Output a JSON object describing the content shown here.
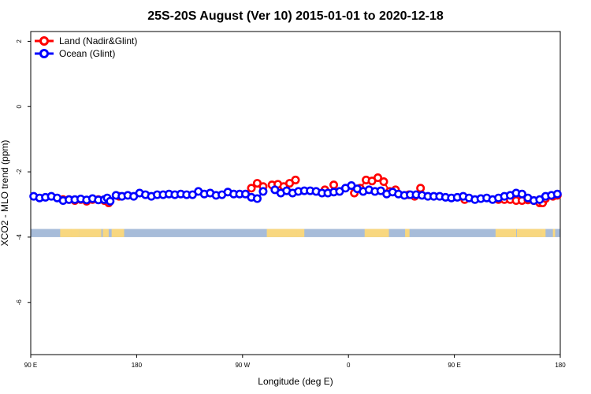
{
  "chart_data": {
    "type": "line",
    "title": "25S-20S August (Ver 10)   2015-01-01 to 2020-12-18",
    "xlabel": "Longitude (deg E)",
    "ylabel": "XCO2 - MLO trend (ppm)",
    "xlim": [
      90,
      450
    ],
    "ylim": [
      -7.6,
      2.3
    ],
    "x_ticks": [
      90,
      162,
      234,
      306,
      378,
      450
    ],
    "x_tick_labels": [
      "90 E",
      "180",
      "90 W",
      "0",
      "90 E",
      "180"
    ],
    "y_ticks": [
      2,
      0,
      -2,
      -4,
      -6
    ],
    "y_tick_labels": [
      "2",
      "0",
      "-2",
      "-4",
      "-6"
    ],
    "grid": false,
    "legend_position": "top-left",
    "map_strip": {
      "y_range": [
        -4.0,
        -3.75
      ],
      "ocean_color": "#a7bcd9",
      "land_color": "#f8d77f",
      "land_segments": [
        [
          110.0,
          120.0
        ],
        [
          117.5,
          123.0
        ],
        [
          123.0,
          138.0
        ],
        [
          139.0,
          143.0
        ],
        [
          145.0,
          153.5
        ],
        [
          250.5,
          251.8
        ],
        [
          251.0,
          268.0
        ],
        [
          267.5,
          271.5
        ],
        [
          271.0,
          276.0
        ],
        [
          317.0,
          333.5
        ],
        [
          344.5,
          347.5
        ],
        [
          406.0,
          420.0
        ],
        [
          420.5,
          437.0
        ],
        [
          437.0,
          440.0
        ],
        [
          445.0,
          446.5
        ]
      ]
    },
    "series": [
      {
        "name": "Land (Nadir&Glint)",
        "color": "#ff0000",
        "x": [
          112,
          116,
          120,
          124,
          128,
          132,
          136,
          140,
          143,
          150,
          240,
          244,
          248,
          254,
          258,
          262,
          266,
          270,
          290,
          296,
          310,
          314,
          318,
          322,
          326,
          330,
          334,
          338,
          347,
          351,
          355,
          385,
          408,
          412,
          416,
          420,
          424,
          428,
          432,
          436,
          438,
          440,
          445,
          448
        ],
        "y": [
          -2.85,
          -2.85,
          -2.88,
          -2.85,
          -2.9,
          -2.85,
          -2.85,
          -2.88,
          -2.95,
          -2.75,
          -2.5,
          -2.35,
          -2.45,
          -2.4,
          -2.38,
          -2.45,
          -2.35,
          -2.25,
          -2.55,
          -2.4,
          -2.65,
          -2.5,
          -2.25,
          -2.28,
          -2.18,
          -2.3,
          -2.6,
          -2.55,
          -2.7,
          -2.75,
          -2.5,
          -2.85,
          -2.85,
          -2.85,
          -2.85,
          -2.88,
          -2.88,
          -2.86,
          -2.88,
          -2.95,
          -2.95,
          -2.82,
          -2.75,
          -2.72
        ]
      },
      {
        "name": "Ocean (Glint)",
        "color": "#0000ff",
        "x": [
          92,
          96,
          100,
          104,
          108,
          112,
          116,
          120,
          124,
          128,
          132,
          136,
          140,
          142,
          144,
          148,
          152,
          156,
          160,
          164,
          168,
          172,
          176,
          180,
          184,
          188,
          192,
          196,
          200,
          204,
          208,
          212,
          216,
          220,
          224,
          228,
          232,
          236,
          240,
          244,
          248,
          256,
          260,
          264,
          268,
          272,
          276,
          280,
          284,
          288,
          292,
          296,
          300,
          304,
          308,
          312,
          316,
          320,
          324,
          328,
          332,
          336,
          340,
          344,
          348,
          352,
          356,
          360,
          364,
          368,
          372,
          376,
          380,
          384,
          388,
          392,
          396,
          400,
          404,
          408,
          412,
          416,
          420,
          424,
          428,
          432,
          436,
          440,
          444,
          448
        ],
        "y": [
          -2.75,
          -2.8,
          -2.78,
          -2.75,
          -2.8,
          -2.88,
          -2.85,
          -2.85,
          -2.83,
          -2.86,
          -2.82,
          -2.86,
          -2.85,
          -2.8,
          -2.9,
          -2.72,
          -2.75,
          -2.72,
          -2.75,
          -2.65,
          -2.7,
          -2.75,
          -2.7,
          -2.7,
          -2.68,
          -2.7,
          -2.68,
          -2.7,
          -2.7,
          -2.6,
          -2.68,
          -2.65,
          -2.72,
          -2.7,
          -2.62,
          -2.68,
          -2.68,
          -2.68,
          -2.78,
          -2.82,
          -2.6,
          -2.55,
          -2.65,
          -2.58,
          -2.65,
          -2.6,
          -2.58,
          -2.58,
          -2.6,
          -2.65,
          -2.65,
          -2.62,
          -2.6,
          -2.5,
          -2.42,
          -2.52,
          -2.6,
          -2.55,
          -2.6,
          -2.58,
          -2.68,
          -2.62,
          -2.68,
          -2.72,
          -2.7,
          -2.7,
          -2.72,
          -2.75,
          -2.75,
          -2.75,
          -2.78,
          -2.8,
          -2.78,
          -2.75,
          -2.8,
          -2.85,
          -2.82,
          -2.8,
          -2.85,
          -2.8,
          -2.75,
          -2.72,
          -2.65,
          -2.68,
          -2.8,
          -2.88,
          -2.85,
          -2.75,
          -2.72,
          -2.68
        ]
      }
    ]
  }
}
